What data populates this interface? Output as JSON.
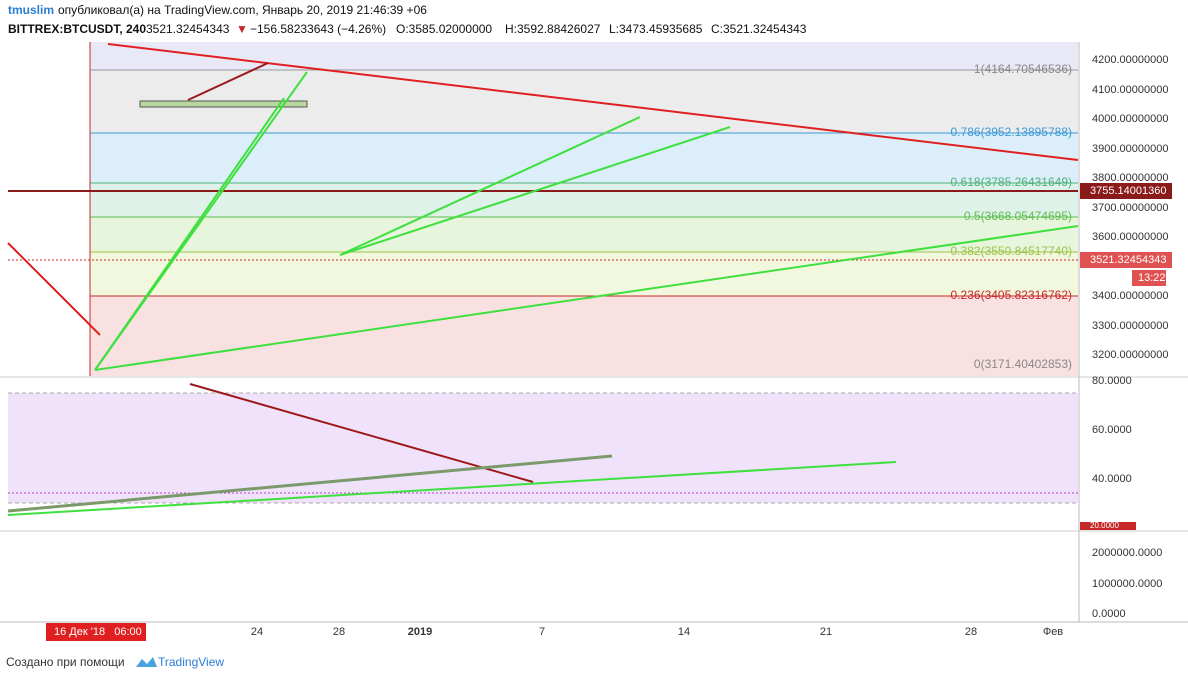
{
  "header": {
    "author": "tmuslim",
    "published": "опубликовал(а) на TradingView.com, Январь 20, 2019 21:46:39 +06",
    "symbol": "BITTREX:BTCUSDT, 240",
    "last": "3521.32454343",
    "arrow": "▼",
    "change": "−156.58233643 (−4.26%)",
    "open": "O:3585.02000000",
    "high": "H:3592.88426027",
    "low": "L:3473.45935685",
    "close": "C:3521.32454343"
  },
  "price_axis": {
    "labels": [
      "4200.00000000",
      "4100.00000000",
      "4000.00000000",
      "3900.00000000",
      "3800.00000000",
      "3700.00000000",
      "3600.00000000",
      "3400.00000000",
      "3300.00000000",
      "3200.00000000"
    ],
    "level_label": "3755.14001360",
    "last_label": "3521.32454343",
    "countdown": "13:22"
  },
  "fib_levels": [
    "1(4164.70546536)",
    "0.786(3952.13895788)",
    "0.618(3785.26431649)",
    "0.5(3668.05474695)",
    "0.382(3550.84517740)",
    "0.236(3405.82316762)",
    "0(3171.40402853)"
  ],
  "rsi_axis": {
    "labels": [
      "80.0000",
      "60.0000",
      "40.0000",
      "20.0000"
    ]
  },
  "volume_axis": {
    "labels": [
      "2000000.0000",
      "1000000.0000",
      "0.0000"
    ]
  },
  "time_axis": {
    "cursor": "16 Дек '18   06:00",
    "labels": [
      "24",
      "28",
      "2019",
      "7",
      "14",
      "21",
      "28",
      "Фев"
    ]
  },
  "footer": {
    "text": "Создано при помощи",
    "brand": "TradingView"
  }
}
